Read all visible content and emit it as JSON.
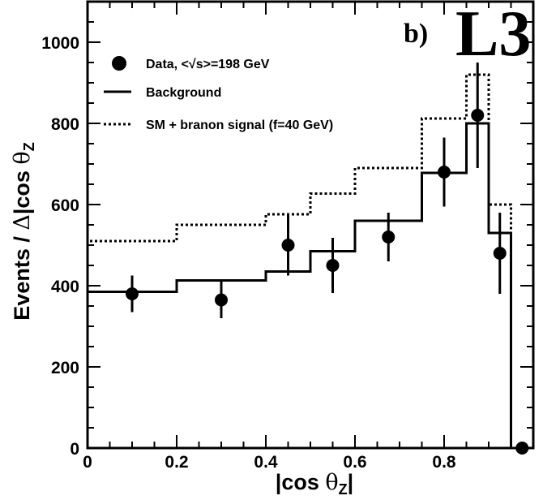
{
  "chart_data": {
    "type": "scatter",
    "panel_label": "b)",
    "logo": "L3",
    "xlabel": "|cos θZ|",
    "ylabel": "Events / Δ|cos θZ|",
    "xlim": [
      0,
      1
    ],
    "ylim": [
      0,
      1100
    ],
    "x_ticks": [
      0,
      0.2,
      0.4,
      0.6,
      0.8
    ],
    "x_tick_labels": [
      "0",
      "0.2",
      "0.4",
      "0.6",
      "0.8"
    ],
    "y_ticks": [
      0,
      200,
      400,
      600,
      800,
      1000
    ],
    "y_tick_labels": [
      "0",
      "200",
      "400",
      "600",
      "800",
      "1000"
    ],
    "x_minor_step": 0.05,
    "y_minor_step": 50,
    "legend_position": "top-left",
    "series": [
      {
        "name": "Data, <√s>=198 GeV",
        "style": "points-with-errors",
        "points": [
          {
            "x": 0.1,
            "y": 380,
            "err": 45
          },
          {
            "x": 0.3,
            "y": 365,
            "err": 45
          },
          {
            "x": 0.45,
            "y": 500,
            "err": 75
          },
          {
            "x": 0.55,
            "y": 450,
            "err": 68
          },
          {
            "x": 0.675,
            "y": 520,
            "err": 60
          },
          {
            "x": 0.8,
            "y": 680,
            "err": 85
          },
          {
            "x": 0.875,
            "y": 820,
            "err": 130
          },
          {
            "x": 0.925,
            "y": 480,
            "err": 100
          },
          {
            "x": 0.975,
            "y": 0,
            "err": 0
          }
        ]
      },
      {
        "name": "Background",
        "style": "solid-step",
        "bin_edges": [
          0,
          0.2,
          0.4,
          0.5,
          0.6,
          0.75,
          0.85,
          0.9,
          0.95
        ],
        "values": [
          385,
          413,
          435,
          485,
          560,
          678,
          800,
          530
        ]
      },
      {
        "name": "SM + branon signal (f=40 GeV)",
        "style": "dotted-step",
        "bin_edges": [
          0,
          0.2,
          0.4,
          0.5,
          0.6,
          0.75,
          0.85,
          0.9,
          0.95
        ],
        "values": [
          510,
          550,
          576,
          627,
          690,
          812,
          920,
          600
        ]
      }
    ]
  }
}
